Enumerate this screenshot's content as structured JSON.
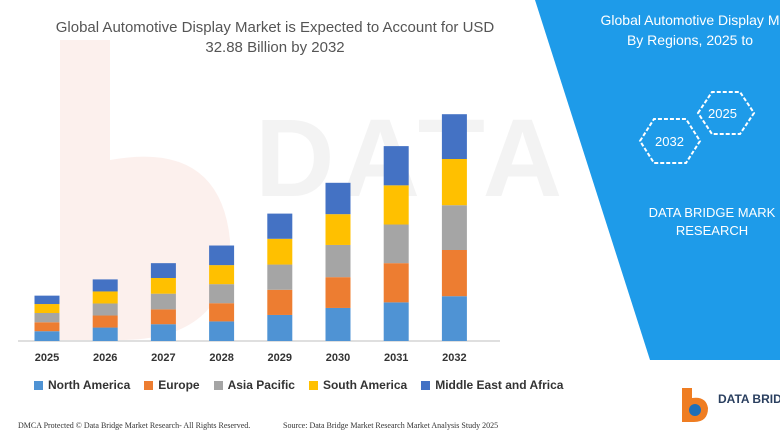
{
  "chart_data": {
    "type": "bar",
    "stacked": true,
    "title": "Global Automotive Display Market is Expected to Account for USD 32.88 Billion by 2032",
    "categories": [
      "2025",
      "2026",
      "2027",
      "2028",
      "2029",
      "2030",
      "2031",
      "2032"
    ],
    "series": [
      {
        "name": "North America",
        "color": "#4f93d4",
        "values": [
          3.5,
          4.8,
          6.0,
          7.0,
          9.3,
          11.8,
          13.8,
          16.0
        ]
      },
      {
        "name": "Europe",
        "color": "#ed7d31",
        "values": [
          3.2,
          4.3,
          5.3,
          6.5,
          9.0,
          11.0,
          14.0,
          16.5
        ]
      },
      {
        "name": "Asia Pacific",
        "color": "#a5a5a5",
        "values": [
          3.3,
          4.3,
          5.6,
          6.8,
          9.0,
          11.5,
          13.8,
          16.0
        ]
      },
      {
        "name": "South America",
        "color": "#ffc000",
        "values": [
          3.2,
          4.3,
          5.6,
          6.8,
          9.2,
          11.0,
          14.0,
          16.5
        ]
      },
      {
        "name": "Middle East and Africa",
        "color": "#4472c4",
        "values": [
          3.0,
          4.3,
          5.3,
          7.0,
          9.0,
          11.2,
          14.0,
          16.0
        ]
      }
    ],
    "legend_position": "bottom",
    "grid": false
  },
  "footer": {
    "dmca": "DMCA Protected © Data Bridge Market Research- All Rights Reserved.",
    "source": "Source: Data Bridge Market Research Market Analysis Study 2025"
  },
  "panel": {
    "title_line1": "Global Automotive Display M",
    "title_line2": "By Regions, 2025 to",
    "hex_2025": "2025",
    "hex_2032": "2032",
    "brand_line1": "DATA BRIDGE MARK",
    "brand_line2": "RESEARCH",
    "logo_text": "DATA BRIDG",
    "accent": "#1e9be9"
  },
  "watermark": "DATA BRIDGE"
}
